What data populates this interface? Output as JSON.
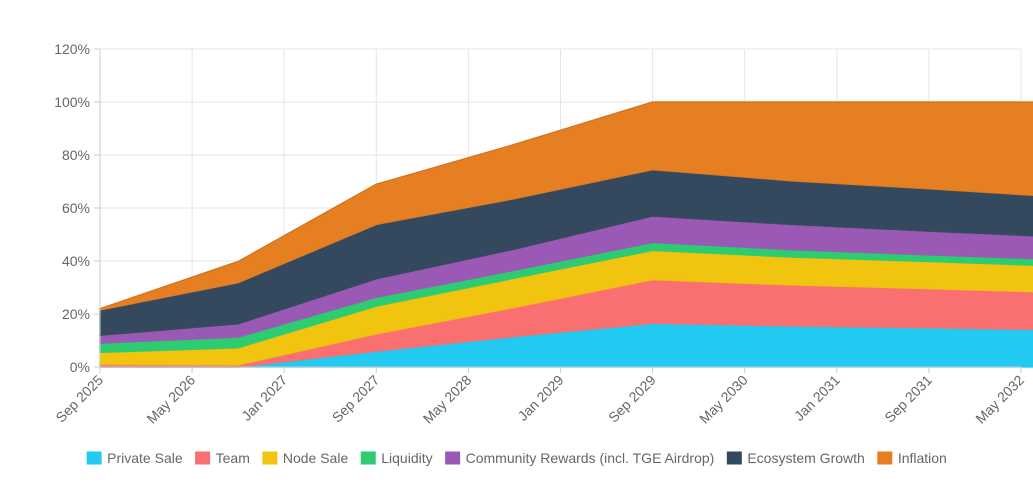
{
  "chart_data": {
    "type": "area",
    "stacked": true,
    "x_ticks": [
      "Sep 2025",
      "May 2026",
      "Jan 2027",
      "Sep 2027",
      "May 2028",
      "Jan 2029",
      "Sep 2029",
      "May 2030",
      "Jan 2031",
      "Sep 2031",
      "May 2032"
    ],
    "x": [
      "Sep 2025",
      "Sep 2026",
      "Sep 2027",
      "Sep 2028",
      "Sep 2029",
      "Sep 2030",
      "Sep 2031",
      "Sep 2032"
    ],
    "y_ticks": [
      "0%",
      "20%",
      "40%",
      "60%",
      "80%",
      "100%",
      "120%"
    ],
    "ylim": [
      0,
      120
    ],
    "y_unit": "%",
    "grid": true,
    "legend_position": "bottom",
    "series": [
      {
        "name": "Private Sale",
        "color": "#22c9f0",
        "values": [
          0,
          0,
          6,
          11.5,
          16.5,
          15.5,
          14.8,
          14
        ]
      },
      {
        "name": "Team",
        "color": "#fa6f6f",
        "values": [
          1,
          0.8,
          6.5,
          11,
          16.5,
          15.5,
          14.8,
          14
        ]
      },
      {
        "name": "Node Sale",
        "color": "#f0c40f",
        "values": [
          4.5,
          6.5,
          10.5,
          11,
          11,
          10.5,
          10.2,
          10
        ]
      },
      {
        "name": "Liquidity",
        "color": "#2ecc71",
        "values": [
          3.5,
          4,
          3.3,
          3,
          3,
          2.8,
          2.5,
          2.5
        ]
      },
      {
        "name": "Community Rewards (incl. TGE Airdrop)",
        "color": "#9b59b6",
        "values": [
          3,
          5,
          7,
          8,
          10,
          9.5,
          9,
          8.5
        ]
      },
      {
        "name": "Ecosystem Growth",
        "color": "#34495e",
        "values": [
          9.5,
          15.5,
          20.5,
          19,
          17.5,
          16.5,
          16,
          15
        ]
      },
      {
        "name": "Inflation",
        "color": "#e67e22",
        "values": [
          0.5,
          8,
          15.2,
          20.5,
          25.5,
          29.7,
          32.7,
          36
        ]
      }
    ]
  }
}
